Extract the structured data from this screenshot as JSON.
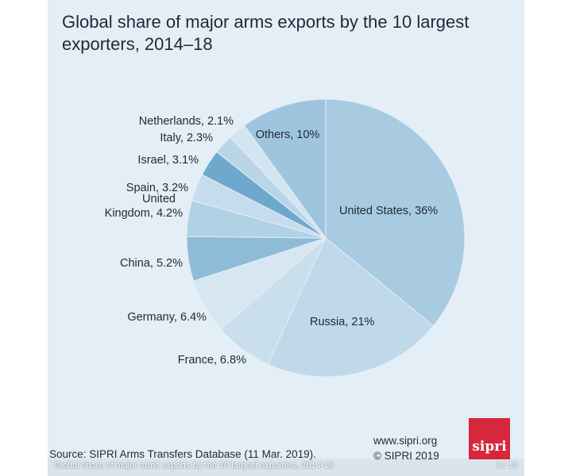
{
  "chart_data": {
    "type": "pie",
    "title": "Global share of major arms exports by the 10 largest exporters, 2014–18",
    "slices": [
      {
        "label": "United States, 36%",
        "name": "United States",
        "value": 36,
        "color": "#a9cbe1"
      },
      {
        "label": "Russia, 21%",
        "name": "Russia",
        "value": 21,
        "color": "#bfd9ea"
      },
      {
        "label": "France, 6.8%",
        "name": "France",
        "value": 6.8,
        "color": "#c9dfec"
      },
      {
        "label": "Germany, 6.4%",
        "name": "Germany",
        "value": 6.4,
        "color": "#d6e7f1"
      },
      {
        "label": "China, 5.2%",
        "name": "China",
        "value": 5.2,
        "color": "#8ebcd8"
      },
      {
        "label": "United Kingdom, 4.2%",
        "name": "United Kingdom",
        "value": 4.2,
        "color": "#b1d1e4"
      },
      {
        "label": "Spain, 3.2%",
        "name": "Spain",
        "value": 3.2,
        "color": "#c5dced"
      },
      {
        "label": "Israel, 3.1%",
        "name": "Israel",
        "value": 3.1,
        "color": "#6ea8cc"
      },
      {
        "label": "Italy, 2.3%",
        "name": "Italy",
        "value": 2.3,
        "color": "#b9d5e7"
      },
      {
        "label": "Netherlands, 2.1%",
        "name": "Netherlands",
        "value": 2.1,
        "color": "#d2e5f0"
      },
      {
        "label": "Others, 10%",
        "name": "Others",
        "value": 10,
        "color": "#9fc5de"
      }
    ]
  },
  "footer": {
    "source": "Source: SIPRI Arms Transfers Database (11 Mar. 2019).",
    "website": "www.sipri.org",
    "copyright": "© SIPRI 2019",
    "logo_text": "sipri"
  },
  "overlay": {
    "caption": "Global share of major arms exports by the 10 largest exporters, 2014-18",
    "pager": "3 / 10"
  }
}
